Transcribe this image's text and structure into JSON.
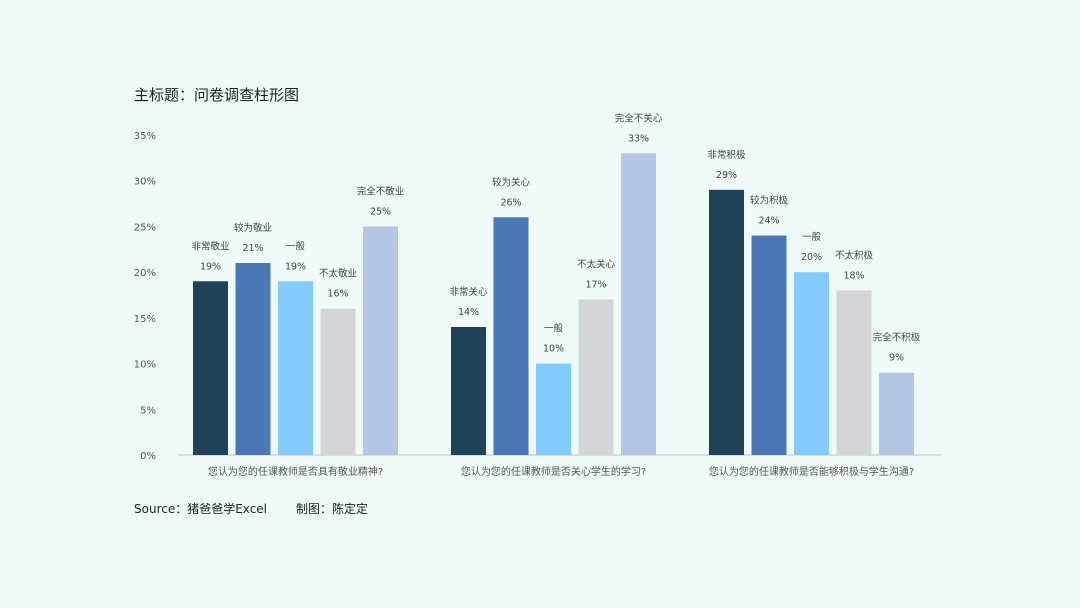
{
  "chart_data": {
    "type": "bar",
    "title": "主标题：问卷调查柱形图",
    "ylim": [
      0,
      35
    ],
    "yticks": [
      "0%",
      "5%",
      "10%",
      "15%",
      "20%",
      "25%",
      "30%",
      "35%"
    ],
    "grid": false,
    "groups": [
      {
        "category": "您认为您的任课教师是否具有敬业精神?",
        "bars": [
          {
            "label": "非常敬业",
            "value": 19,
            "value_label": "19%"
          },
          {
            "label": "较为敬业",
            "value": 21,
            "value_label": "21%"
          },
          {
            "label": "一般",
            "value": 19,
            "value_label": "19%"
          },
          {
            "label": "不太敬业",
            "value": 16,
            "value_label": "16%"
          },
          {
            "label": "完全不敬业",
            "value": 25,
            "value_label": "25%"
          }
        ]
      },
      {
        "category": "您认为您的任课教师是否关心学生的学习?",
        "bars": [
          {
            "label": "非常关心",
            "value": 14,
            "value_label": "14%"
          },
          {
            "label": "较为关心",
            "value": 26,
            "value_label": "26%"
          },
          {
            "label": "一般",
            "value": 10,
            "value_label": "10%"
          },
          {
            "label": "不太关心",
            "value": 17,
            "value_label": "17%"
          },
          {
            "label": "完全不关心",
            "value": 33,
            "value_label": "33%"
          }
        ]
      },
      {
        "category": "您认为您的任课教师是否能够积极与学生沟通?",
        "bars": [
          {
            "label": "非常积极",
            "value": 29,
            "value_label": "29%"
          },
          {
            "label": "较为积极",
            "value": 24,
            "value_label": "24%"
          },
          {
            "label": "一般",
            "value": 20,
            "value_label": "20%"
          },
          {
            "label": "不太积极",
            "value": 18,
            "value_label": "18%"
          },
          {
            "label": "完全不积极",
            "value": 9,
            "value_label": "9%"
          }
        ]
      }
    ],
    "colors": [
      "#1e4358",
      "#4a78b7",
      "#82cbfc",
      "#d4d5d9",
      "#b3c6e3"
    ]
  },
  "footer": {
    "source": "Source：猪爸爸学Excel",
    "author": "制图：陈定定"
  }
}
